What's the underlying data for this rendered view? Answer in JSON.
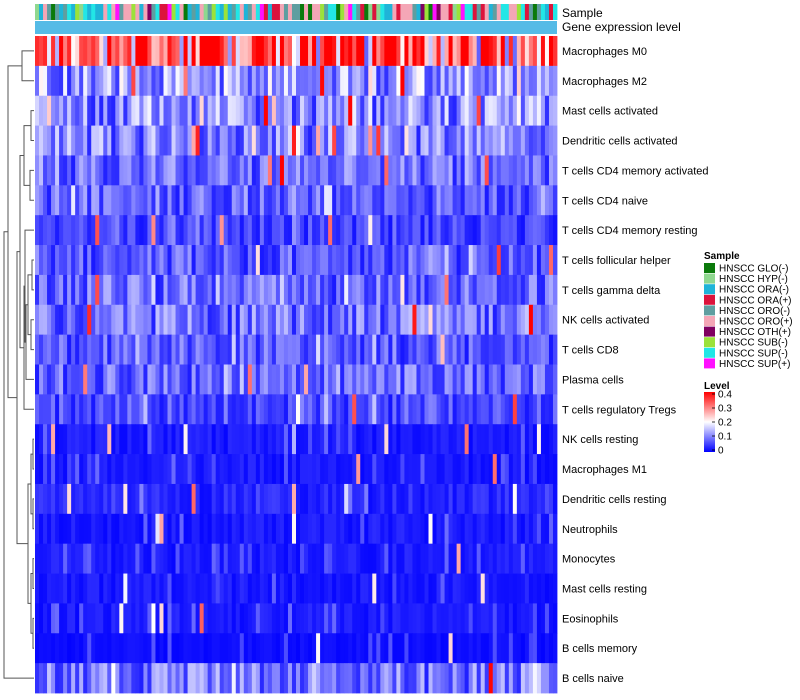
{
  "chart_data": {
    "type": "heatmap",
    "annotations": [
      "Sample",
      "Gene expression level"
    ],
    "rows": [
      "Macrophages M0",
      "Macrophages M2",
      "Mast cells activated",
      "Dendritic cells activated",
      "T cells CD4 memory activated",
      "T cells CD4 naive",
      "T cells CD4 memory resting",
      "T cells follicular helper",
      "T cells gamma delta",
      "NK cells activated",
      "T cells CD8",
      "Plasma cells",
      "T cells regulatory  Tregs",
      "NK cells resting",
      "Macrophages M1",
      "Dendritic cells resting",
      "Neutrophils",
      "Monocytes",
      "Mast cells resting",
      "Eosinophils",
      "B cells memory",
      "B cells naive"
    ],
    "row_mean_levels": [
      0.3,
      0.12,
      0.11,
      0.1,
      0.08,
      0.08,
      0.05,
      0.07,
      0.08,
      0.09,
      0.07,
      0.08,
      0.06,
      0.02,
      0.02,
      0.03,
      0.02,
      0.02,
      0.02,
      0.02,
      0.01,
      0.09
    ],
    "n_samples": 130,
    "sample_legend": {
      "title": "Sample",
      "items": [
        {
          "label": "HNSCC GLO(-)",
          "color": "#0b7a0b"
        },
        {
          "label": "HNSCC HYP(-)",
          "color": "#8fd88f"
        },
        {
          "label": "HNSCC ORA(-)",
          "color": "#1fb4d8"
        },
        {
          "label": "HNSCC ORA(+)",
          "color": "#dc143c"
        },
        {
          "label": "HNSCC ORO(-)",
          "color": "#5f9ea0"
        },
        {
          "label": "HNSCC ORO(+)",
          "color": "#f4a6b6"
        },
        {
          "label": "HNSCC OTH(+)",
          "color": "#800060"
        },
        {
          "label": "HNSCC SUB(-)",
          "color": "#9be23a"
        },
        {
          "label": "HNSCC SUP(-)",
          "color": "#22e6e6"
        },
        {
          "label": "HNSCC SUP(+)",
          "color": "#ff10ff"
        }
      ]
    },
    "level_legend": {
      "title": "Level",
      "ticks": [
        "0.4",
        "0.3",
        "0.2",
        "0.1",
        "0"
      ],
      "tick_values": [
        0.4,
        0.3,
        0.2,
        0.1,
        0
      ],
      "range": [
        0,
        0.4
      ],
      "colors": {
        "low": "#0000ff",
        "mid": "#ffffff",
        "high": "#ff0000"
      }
    },
    "gene_expression_color": "#55bbe6"
  }
}
